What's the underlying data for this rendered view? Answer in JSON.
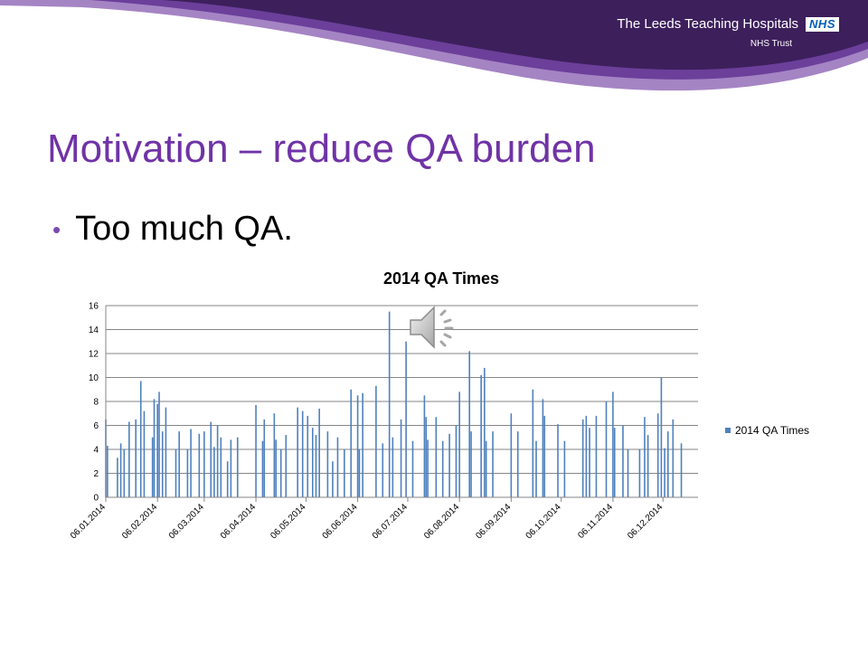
{
  "header": {
    "org_name": "The Leeds Teaching Hospitals",
    "nhs_logo": "NHS",
    "trust_label": "NHS Trust",
    "colors": {
      "purple_dark": "#3d1f5c",
      "purple_mid": "#6b3f9a",
      "purple_light": "#a584c4"
    }
  },
  "slide": {
    "title": "Motivation – reduce QA burden",
    "bullet": "Too much QA.",
    "title_color": "#7033a6"
  },
  "media": {
    "icon": "speaker-icon"
  },
  "chart_data": {
    "type": "bar",
    "title": "2014 QA Times",
    "xlabel": "",
    "ylabel": "",
    "ylim": [
      0,
      16
    ],
    "yticks": [
      0,
      2,
      4,
      6,
      8,
      10,
      12,
      14,
      16
    ],
    "x_date_range": [
      "2014-01-06",
      "2014-12-27"
    ],
    "x_tick_labels": [
      "06.01.2014",
      "06.02.2014",
      "06.03.2014",
      "06.04.2014",
      "06.05.2014",
      "06.06.2014",
      "06.07.2014",
      "06.08.2014",
      "06.09.2014",
      "06.10.2014",
      "06.11.2014",
      "06.12.2014"
    ],
    "x_tick_dates": [
      "2014-01-06",
      "2014-02-06",
      "2014-03-06",
      "2014-04-06",
      "2014-05-06",
      "2014-06-06",
      "2014-07-06",
      "2014-08-06",
      "2014-09-06",
      "2014-10-06",
      "2014-11-06",
      "2014-12-06"
    ],
    "grid": true,
    "legend_position": "right",
    "series": [
      {
        "name": "2014 QA Times",
        "color": "#4f81bd",
        "points": [
          [
            "2014-01-06",
            6.5
          ],
          [
            "2014-01-07",
            4.3
          ],
          [
            "2014-01-13",
            3.3
          ],
          [
            "2014-01-15",
            4.5
          ],
          [
            "2014-01-17",
            4.0
          ],
          [
            "2014-01-20",
            6.3
          ],
          [
            "2014-01-24",
            6.5
          ],
          [
            "2014-01-27",
            9.7
          ],
          [
            "2014-01-29",
            7.2
          ],
          [
            "2014-02-03",
            5.0
          ],
          [
            "2014-02-04",
            8.2
          ],
          [
            "2014-02-06",
            7.8
          ],
          [
            "2014-02-07",
            8.8
          ],
          [
            "2014-02-09",
            5.5
          ],
          [
            "2014-02-11",
            7.5
          ],
          [
            "2014-02-17",
            4.0
          ],
          [
            "2014-02-19",
            5.5
          ],
          [
            "2014-02-24",
            4.0
          ],
          [
            "2014-02-26",
            5.7
          ],
          [
            "2014-03-03",
            5.3
          ],
          [
            "2014-03-06",
            5.5
          ],
          [
            "2014-03-10",
            6.3
          ],
          [
            "2014-03-12",
            4.2
          ],
          [
            "2014-03-14",
            6.0
          ],
          [
            "2014-03-16",
            5.0
          ],
          [
            "2014-03-20",
            3.0
          ],
          [
            "2014-03-22",
            4.8
          ],
          [
            "2014-03-26",
            5.0
          ],
          [
            "2014-04-06",
            7.7
          ],
          [
            "2014-04-10",
            4.7
          ],
          [
            "2014-04-11",
            6.5
          ],
          [
            "2014-04-17",
            7.0
          ],
          [
            "2014-04-18",
            4.8
          ],
          [
            "2014-04-21",
            4.0
          ],
          [
            "2014-04-24",
            5.2
          ],
          [
            "2014-05-01",
            7.5
          ],
          [
            "2014-05-04",
            7.2
          ],
          [
            "2014-05-07",
            6.8
          ],
          [
            "2014-05-10",
            5.8
          ],
          [
            "2014-05-12",
            5.2
          ],
          [
            "2014-05-14",
            7.4
          ],
          [
            "2014-05-19",
            5.5
          ],
          [
            "2014-05-22",
            3.0
          ],
          [
            "2014-05-25",
            5.0
          ],
          [
            "2014-05-29",
            4.0
          ],
          [
            "2014-06-02",
            9.0
          ],
          [
            "2014-06-06",
            8.5
          ],
          [
            "2014-06-07",
            4.0
          ],
          [
            "2014-06-09",
            8.7
          ],
          [
            "2014-06-17",
            9.3
          ],
          [
            "2014-06-21",
            4.5
          ],
          [
            "2014-06-25",
            15.5
          ],
          [
            "2014-06-27",
            5.0
          ],
          [
            "2014-07-02",
            6.5
          ],
          [
            "2014-07-05",
            13.0
          ],
          [
            "2014-07-09",
            4.7
          ],
          [
            "2014-07-16",
            8.5
          ],
          [
            "2014-07-17",
            6.7
          ],
          [
            "2014-07-18",
            4.8
          ],
          [
            "2014-07-23",
            6.7
          ],
          [
            "2014-07-27",
            4.7
          ],
          [
            "2014-07-31",
            5.3
          ],
          [
            "2014-08-04",
            6.0
          ],
          [
            "2014-08-06",
            8.8
          ],
          [
            "2014-08-12",
            12.2
          ],
          [
            "2014-08-13",
            5.5
          ],
          [
            "2014-08-19",
            10.2
          ],
          [
            "2014-08-21",
            10.8
          ],
          [
            "2014-08-22",
            4.7
          ],
          [
            "2014-08-26",
            5.5
          ],
          [
            "2014-09-06",
            7.0
          ],
          [
            "2014-09-10",
            5.5
          ],
          [
            "2014-09-19",
            9.0
          ],
          [
            "2014-09-21",
            4.7
          ],
          [
            "2014-09-25",
            8.2
          ],
          [
            "2014-09-26",
            6.8
          ],
          [
            "2014-10-04",
            6.1
          ],
          [
            "2014-10-08",
            4.7
          ],
          [
            "2014-10-19",
            6.5
          ],
          [
            "2014-10-21",
            6.8
          ],
          [
            "2014-10-23",
            5.8
          ],
          [
            "2014-10-27",
            6.8
          ],
          [
            "2014-11-02",
            8.0
          ],
          [
            "2014-11-06",
            8.8
          ],
          [
            "2014-11-07",
            5.8
          ],
          [
            "2014-11-12",
            6.0
          ],
          [
            "2014-11-15",
            4.0
          ],
          [
            "2014-11-22",
            4.0
          ],
          [
            "2014-11-25",
            6.7
          ],
          [
            "2014-11-27",
            5.2
          ],
          [
            "2014-12-03",
            7.0
          ],
          [
            "2014-12-05",
            10.0
          ],
          [
            "2014-12-07",
            4.1
          ],
          [
            "2014-12-09",
            5.5
          ],
          [
            "2014-12-12",
            6.5
          ],
          [
            "2014-12-17",
            4.5
          ]
        ]
      }
    ]
  }
}
